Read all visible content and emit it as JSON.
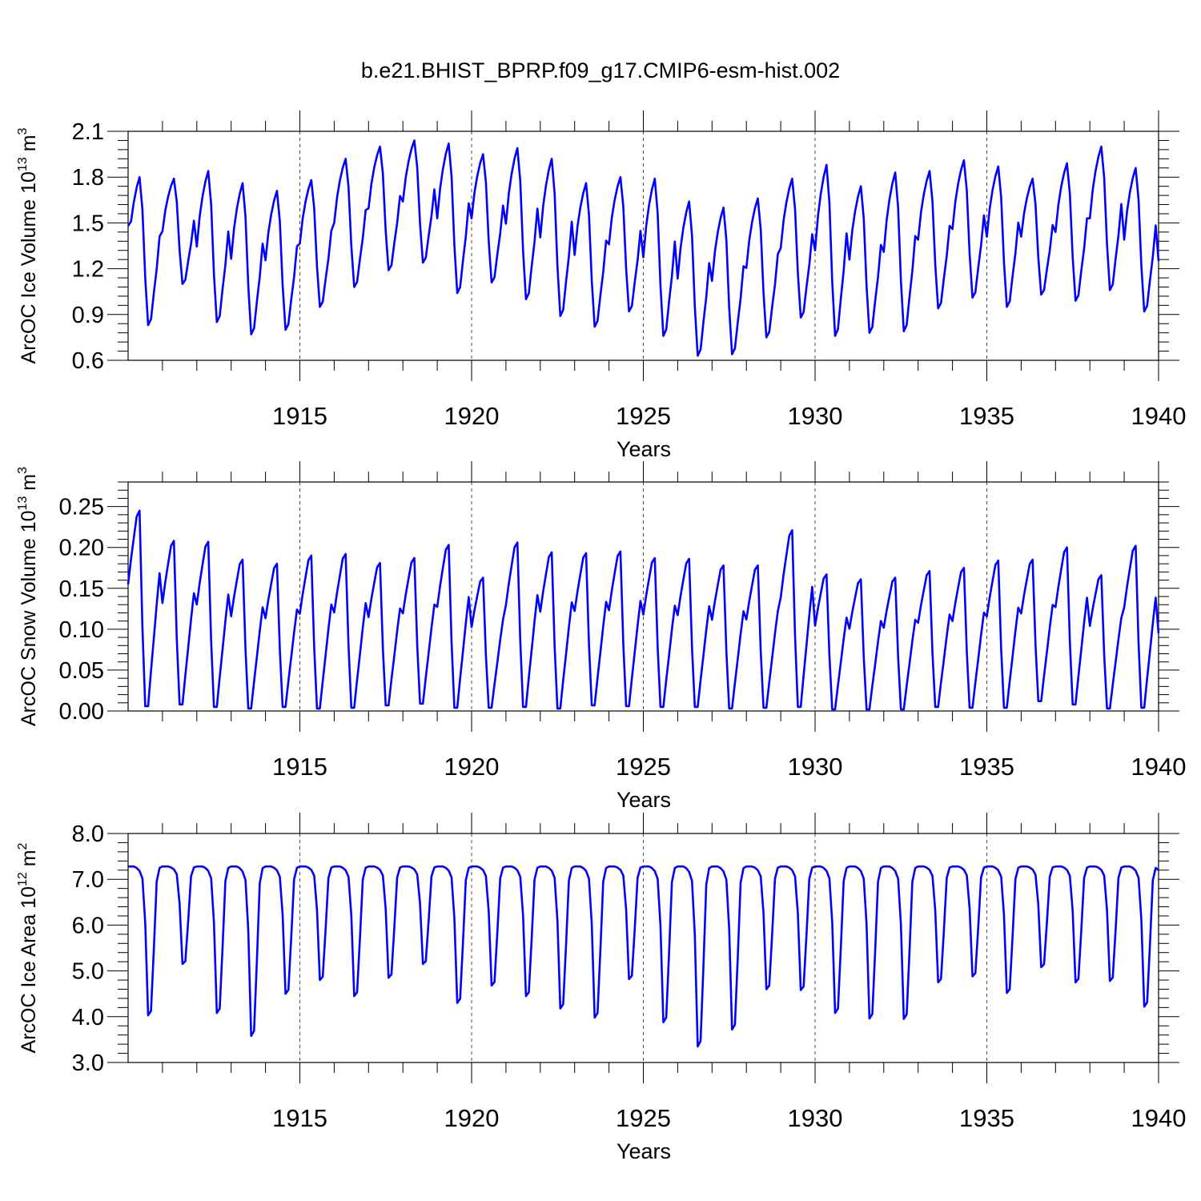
{
  "figure_title": "b.e21.BHIST_BPRP.f09_g17.CMIP6-esm-hist.002",
  "chart_data": [
    {
      "type": "line",
      "name": "ice-volume",
      "ylabel": {
        "base": "ArcOC Ice Volume 10",
        "exp": "13",
        "unit": " m",
        "unit_exp": "3"
      },
      "xlabel": "Years",
      "x_range": [
        1910.0,
        1940.0
      ],
      "xticks": [
        1915,
        1920,
        1925,
        1930,
        1935,
        1940
      ],
      "ylim": [
        0.6,
        2.1
      ],
      "yticks": [
        "0.6",
        "0.9",
        "1.2",
        "1.5",
        "1.8",
        "2.1"
      ],
      "series": [
        {
          "name": "Ice Volume",
          "color": "#0000ff",
          "start_year": 1910.0,
          "monthly_step": 0.0833,
          "annual_max": [
            1.8,
            1.79,
            1.84,
            1.76,
            1.71,
            1.78,
            1.92,
            2.0,
            2.04,
            2.02,
            1.95,
            1.99,
            1.92,
            1.76,
            1.8,
            1.79,
            1.64,
            1.6,
            1.66,
            1.79,
            1.88,
            1.74,
            1.83,
            1.84,
            1.91,
            1.87,
            1.79,
            1.89,
            2.0,
            1.86
          ],
          "annual_min": [
            0.83,
            1.1,
            0.85,
            0.77,
            0.8,
            0.95,
            1.08,
            1.19,
            1.24,
            1.04,
            1.11,
            1.0,
            0.89,
            0.82,
            0.92,
            0.76,
            0.63,
            0.64,
            0.75,
            0.88,
            0.76,
            0.78,
            0.79,
            0.94,
            1.01,
            0.95,
            1.03,
            0.99,
            1.06,
            0.92
          ],
          "start_value": 1.48,
          "end_value": 1.25
        }
      ]
    },
    {
      "type": "line",
      "name": "snow-volume",
      "ylabel": {
        "base": "ArcOC Snow Volume 10",
        "exp": "13",
        "unit": " m",
        "unit_exp": "3"
      },
      "xlabel": "Years",
      "x_range": [
        1910.0,
        1940.0
      ],
      "xticks": [
        1915,
        1920,
        1925,
        1930,
        1935,
        1940
      ],
      "ylim": [
        0.0,
        0.28
      ],
      "yticks": [
        "0.00",
        "0.05",
        "0.10",
        "0.15",
        "0.20",
        "0.25"
      ],
      "series": [
        {
          "name": "Snow Volume",
          "color": "#0000ff",
          "start_year": 1910.0,
          "monthly_step": 0.0833,
          "annual_max": [
            0.245,
            0.208,
            0.207,
            0.185,
            0.18,
            0.19,
            0.192,
            0.181,
            0.187,
            0.203,
            0.163,
            0.206,
            0.194,
            0.193,
            0.195,
            0.187,
            0.186,
            0.178,
            0.178,
            0.221,
            0.167,
            0.161,
            0.163,
            0.171,
            0.175,
            0.184,
            0.185,
            0.2,
            0.166,
            0.202
          ],
          "annual_min": [
            0.006,
            0.008,
            0.005,
            0.003,
            0.005,
            0.003,
            0.004,
            0.007,
            0.009,
            0.004,
            0.004,
            0.005,
            0.003,
            0.007,
            0.006,
            0.005,
            0.005,
            0.003,
            0.004,
            0.005,
            0.002,
            0.002,
            0.002,
            0.005,
            0.004,
            0.004,
            0.012,
            0.008,
            0.003,
            0.004
          ],
          "start_value": 0.155,
          "end_value": 0.095
        }
      ]
    },
    {
      "type": "line",
      "name": "ice-area",
      "ylabel": {
        "base": "ArcOC Ice Area 10",
        "exp": "12",
        "unit": " m",
        "unit_exp": "2"
      },
      "xlabel": "Years",
      "x_range": [
        1910.0,
        1940.0
      ],
      "xticks": [
        1915,
        1920,
        1925,
        1930,
        1935,
        1940
      ],
      "ylim": [
        3.0,
        8.0
      ],
      "yticks": [
        "3.0",
        "4.0",
        "5.0",
        "6.0",
        "7.0",
        "8.0"
      ],
      "series": [
        {
          "name": "Ice Area",
          "color": "#0000ff",
          "start_year": 1910.0,
          "monthly_step": 0.0833,
          "annual_max": [
            7.28,
            7.28,
            7.28,
            7.28,
            7.28,
            7.28,
            7.28,
            7.28,
            7.28,
            7.28,
            7.28,
            7.28,
            7.28,
            7.28,
            7.28,
            7.28,
            7.28,
            7.28,
            7.28,
            7.28,
            7.28,
            7.28,
            7.28,
            7.28,
            7.28,
            7.28,
            7.28,
            7.28,
            7.28,
            7.28
          ],
          "annual_min": [
            4.03,
            5.15,
            4.08,
            3.58,
            4.5,
            4.8,
            4.45,
            4.85,
            5.15,
            4.3,
            4.68,
            4.45,
            4.18,
            3.98,
            4.82,
            3.88,
            3.35,
            3.72,
            4.6,
            4.58,
            4.08,
            3.96,
            3.95,
            4.75,
            4.88,
            4.52,
            5.08,
            4.75,
            4.78,
            4.22
          ],
          "start_value": 7.28,
          "end_value": 7.2
        }
      ]
    }
  ]
}
